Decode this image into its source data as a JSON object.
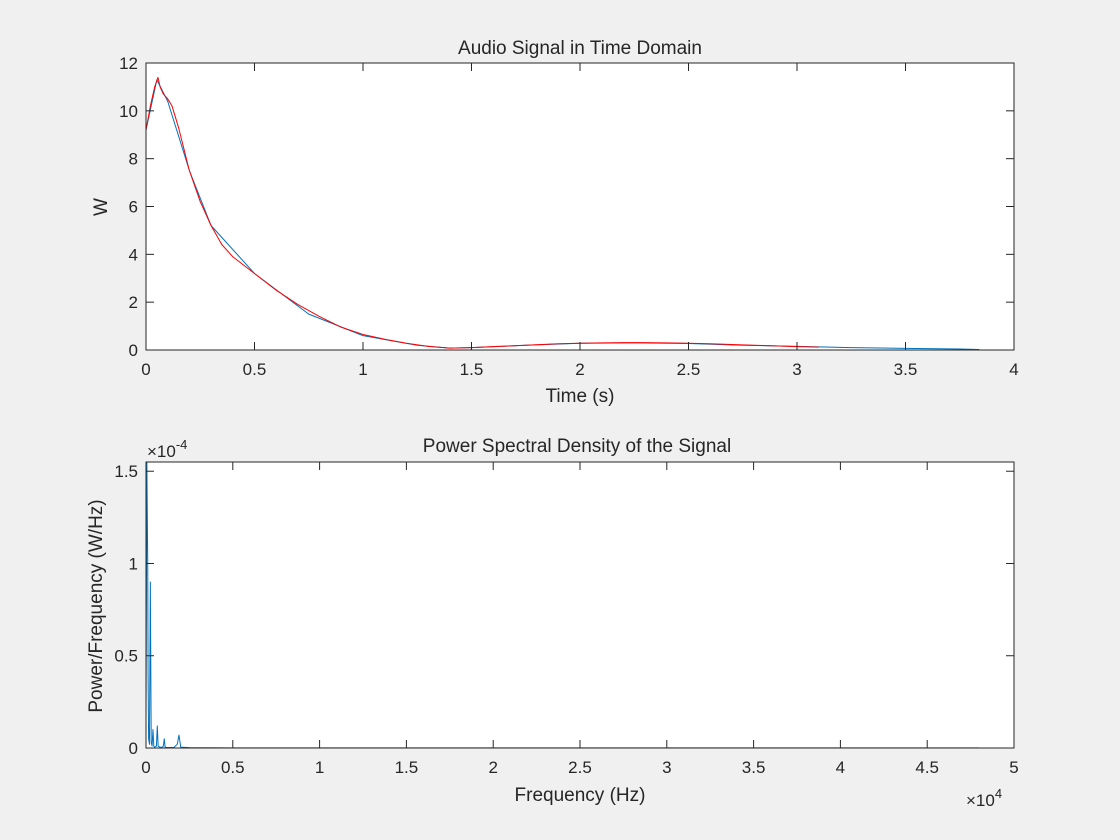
{
  "chart_data": [
    {
      "type": "line",
      "title": "Audio Signal in Time Domain",
      "xlabel": "Time (s)",
      "ylabel": "W",
      "xlim": [
        0,
        4
      ],
      "ylim": [
        0,
        12
      ],
      "xticks": [
        0,
        0.5,
        1,
        1.5,
        2,
        2.5,
        3,
        3.5,
        4
      ],
      "xtick_labels": [
        "0",
        "0.5",
        "1",
        "1.5",
        "2",
        "2.5",
        "3",
        "3.5",
        "4"
      ],
      "yticks": [
        0,
        2,
        4,
        6,
        8,
        10,
        12
      ],
      "ytick_labels": [
        "0",
        "2",
        "4",
        "6",
        "8",
        "10",
        "12"
      ],
      "grid": false,
      "series": [
        {
          "color": "#0072bd",
          "x": [
            0,
            0.05,
            0.1,
            0.2,
            0.3,
            0.5,
            0.75,
            1.0,
            1.25,
            1.4,
            1.5,
            1.75,
            2.0,
            2.25,
            2.5,
            2.75,
            3.0,
            3.25,
            3.5,
            3.75,
            3.84
          ],
          "y": [
            9.2,
            11.3,
            10.4,
            7.5,
            5.2,
            3.2,
            1.5,
            0.6,
            0.2,
            0.08,
            0.1,
            0.2,
            0.28,
            0.3,
            0.27,
            0.2,
            0.15,
            0.1,
            0.07,
            0.04,
            0.02
          ]
        },
        {
          "color": "#ff0000",
          "x": [
            0,
            0.02,
            0.04,
            0.055,
            0.065,
            0.08,
            0.1,
            0.12,
            0.15,
            0.2,
            0.25,
            0.3,
            0.35,
            0.4,
            0.5,
            0.6,
            0.7,
            0.8,
            0.9,
            1.0,
            1.1,
            1.2,
            1.3,
            1.4,
            1.5,
            1.6,
            1.7,
            1.8,
            1.9,
            2.0,
            2.1,
            2.2,
            2.3,
            2.4,
            2.5,
            2.6,
            2.7,
            2.8,
            2.9,
            3.0,
            3.1
          ],
          "y": [
            9.2,
            10.2,
            11.0,
            11.4,
            11.0,
            10.7,
            10.5,
            10.2,
            9.3,
            7.5,
            6.2,
            5.2,
            4.4,
            3.9,
            3.2,
            2.5,
            1.9,
            1.4,
            0.95,
            0.65,
            0.45,
            0.28,
            0.15,
            0.08,
            0.1,
            0.14,
            0.18,
            0.22,
            0.26,
            0.28,
            0.3,
            0.31,
            0.31,
            0.3,
            0.28,
            0.26,
            0.23,
            0.2,
            0.17,
            0.14,
            0.12
          ]
        }
      ]
    },
    {
      "type": "line",
      "title": "Power Spectral Density of the Signal",
      "xlabel": "Frequency (Hz)",
      "ylabel": "Power/Frequency (W/Hz)",
      "xlim": [
        0,
        5
      ],
      "ylim": [
        0,
        1.55
      ],
      "x_exponent_label": "×10",
      "x_exponent": "4",
      "y_exponent_label": "×10",
      "y_exponent": "-4",
      "xticks": [
        0,
        0.5,
        1,
        1.5,
        2,
        2.5,
        3,
        3.5,
        4,
        4.5,
        5
      ],
      "xtick_labels": [
        "0",
        "0.5",
        "1",
        "1.5",
        "2",
        "2.5",
        "3",
        "3.5",
        "4",
        "4.5",
        "5"
      ],
      "yticks": [
        0,
        0.5,
        1,
        1.5
      ],
      "ytick_labels": [
        "0",
        "0.5",
        "1",
        "1.5"
      ],
      "grid": false,
      "series": [
        {
          "color": "#0072bd",
          "x": [
            0,
            0.005,
            0.01,
            0.012,
            0.015,
            0.02,
            0.025,
            0.03,
            0.035,
            0.04,
            0.045,
            0.05,
            0.06,
            0.065,
            0.07,
            0.08,
            0.09,
            0.1,
            0.105,
            0.11,
            0.12,
            0.16,
            0.18,
            0.19,
            0.2,
            0.25,
            0.5,
            1,
            2,
            3,
            4,
            4.8
          ],
          "y": [
            0.15,
            1.55,
            1.0,
            0.4,
            0.05,
            0.02,
            0.9,
            0.03,
            0.01,
            0.1,
            0.01,
            0.005,
            0.01,
            0.12,
            0.01,
            0.005,
            0.003,
            0.01,
            0.05,
            0.005,
            0.003,
            0.003,
            0.02,
            0.07,
            0.005,
            0.002,
            0.001,
            0.001,
            0.001,
            0.001,
            0.001,
            0.0005
          ]
        }
      ]
    }
  ]
}
